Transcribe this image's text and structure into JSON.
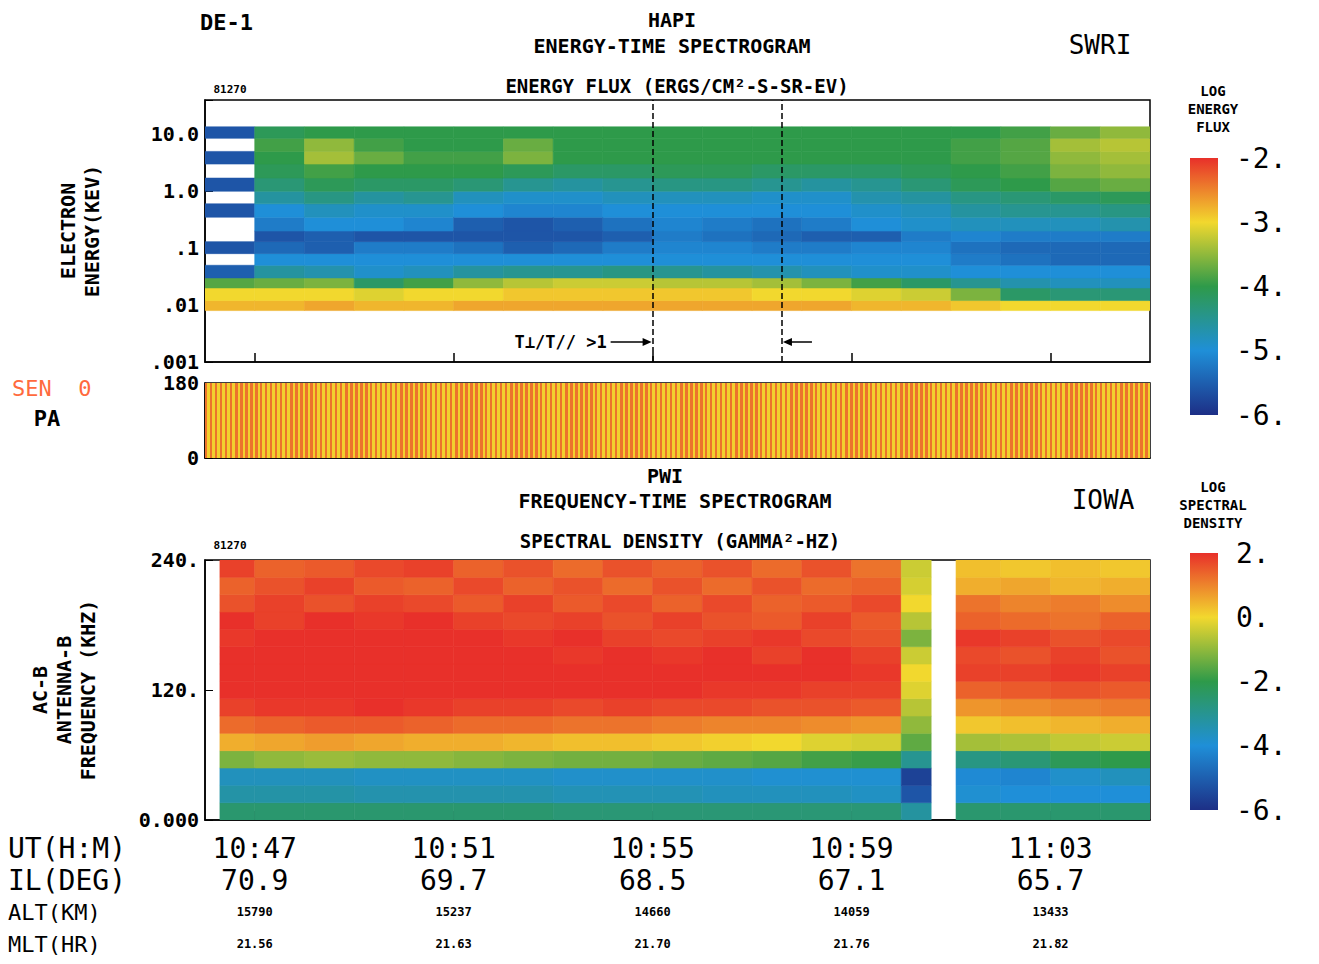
{
  "header": {
    "satellite": "DE-1"
  },
  "chart_data": [
    {
      "type": "heatmap",
      "instrument": "HAPI",
      "title": "ENERGY-TIME SPECTROGRAM",
      "institution": "SWRI",
      "subtitle": "ENERGY FLUX (ERGS/CM²-S-SR-EV)",
      "date": "81270",
      "y_label": [
        "ELECTRON",
        "ENERGY(KEV)"
      ],
      "log": "y",
      "tick_labels": "y",
      "xlim": [
        646,
        665
      ],
      "xticks": [
        {
          "value": 647,
          "label": "10:47"
        },
        {
          "value": 651,
          "label": "10:51"
        },
        {
          "value": 655,
          "label": "10:55"
        },
        {
          "value": 659,
          "label": "10:59"
        },
        {
          "value": 663,
          "label": "11:03"
        }
      ],
      "ylim": [
        0.001,
        40
      ],
      "yticks": [
        {
          "value": 10,
          "label": "10.0"
        },
        {
          "value": 1,
          "label": "1.0"
        },
        {
          "value": 0.1,
          "label": ".1"
        },
        {
          "value": 0.01,
          "label": ".01"
        },
        {
          "value": 0.001,
          "label": ".001"
        }
      ],
      "x_edges": [
        646,
        647,
        648,
        649,
        650,
        651,
        652,
        653,
        654,
        655,
        656,
        657,
        658,
        659,
        660,
        661,
        662,
        663,
        664,
        665
      ],
      "y_edges": [
        0.008,
        0.012,
        0.02,
        0.03,
        0.05,
        0.08,
        0.13,
        0.2,
        0.35,
        0.6,
        1.0,
        1.7,
        3,
        5,
        8.5,
        13.5
      ],
      "cells": [
        [
          -2.8,
          -3.0,
          -3.8,
          -5.5,
          null,
          -5.6,
          null,
          null,
          -5.6,
          null,
          -5.6,
          null,
          -5.6,
          null,
          -5.6
        ],
        [
          -2.8,
          -3.0,
          -3.7,
          -4.6,
          -5.0,
          -5.4,
          -5.6,
          -5.2,
          -5.0,
          -4.6,
          -4.3,
          -4.1,
          -4.0,
          -3.9,
          -4.1
        ],
        [
          -2.7,
          -3.0,
          -3.6,
          -4.7,
          -5.0,
          -5.5,
          -5.5,
          -5.0,
          -4.8,
          -4.4,
          -4.1,
          -3.9,
          -3.4,
          -3.5,
          -4.0
        ],
        [
          -2.8,
          -3.1,
          -4.2,
          -4.9,
          -5.0,
          -5.2,
          -5.6,
          -5.0,
          -4.9,
          -4.6,
          -4.2,
          -4.0,
          -3.7,
          -3.9,
          -4.0
        ],
        [
          -2.8,
          -3.0,
          -3.9,
          -4.8,
          -5.0,
          -5.2,
          -5.6,
          -5.1,
          -4.9,
          -4.5,
          -4.2,
          -4.0,
          -3.9,
          -4.0,
          -4.0
        ],
        [
          -2.7,
          -3.0,
          -3.5,
          -4.6,
          -5.0,
          -5.3,
          -5.6,
          -5.5,
          -5.0,
          -4.8,
          -4.3,
          -4.0,
          -3.9,
          -4.0,
          -4.0
        ],
        [
          -2.7,
          -2.9,
          -3.3,
          -4.5,
          -5.0,
          -5.5,
          -5.6,
          -5.6,
          -5.1,
          -4.9,
          -4.5,
          -4.1,
          -3.6,
          -3.7,
          -4.0
        ],
        [
          -2.7,
          -2.9,
          -3.2,
          -4.5,
          -5.0,
          -5.4,
          -5.6,
          -5.5,
          -5.1,
          -4.9,
          -4.6,
          -4.2,
          -4.0,
          -4.0,
          -4.0
        ],
        [
          -2.7,
          -2.9,
          -3.2,
          -4.4,
          -5.0,
          -5.2,
          -5.5,
          -5.3,
          -5.0,
          -4.8,
          -4.5,
          -4.2,
          -4.0,
          -4.0,
          -4.0
        ],
        [
          -2.7,
          -2.9,
          -3.3,
          -4.5,
          -5.0,
          -5.1,
          -5.2,
          -5.1,
          -5.0,
          -4.8,
          -4.4,
          -4.1,
          -4.0,
          -4.0,
          -4.0
        ],
        [
          -2.7,
          -2.9,
          -3.3,
          -4.6,
          -5.0,
          -5.1,
          -5.3,
          -5.2,
          -5.0,
          -4.8,
          -4.4,
          -4.1,
          -4.0,
          -4.0,
          -4.0
        ],
        [
          -2.7,
          -3.0,
          -3.4,
          -4.7,
          -5.0,
          -5.2,
          -5.4,
          -5.3,
          -5.0,
          -4.9,
          -4.5,
          -4.2,
          -4.0,
          -4.0,
          -4.0
        ],
        [
          -2.7,
          -3.0,
          -3.6,
          -4.8,
          -5.0,
          -5.2,
          -5.5,
          -5.2,
          -5.0,
          -4.9,
          -4.6,
          -4.2,
          -4.0,
          -4.0,
          -4.0
        ],
        [
          -2.8,
          -3.1,
          -3.9,
          -4.9,
          -5.0,
          -5.1,
          -5.5,
          -5.0,
          -4.9,
          -4.7,
          -4.5,
          -4.2,
          -4.0,
          -4.0,
          -4.0
        ],
        [
          -2.8,
          -3.2,
          -4.2,
          -4.9,
          -5.0,
          -5.1,
          -5.2,
          -4.9,
          -4.8,
          -4.6,
          -4.3,
          -4.1,
          -4.0,
          -4.0,
          -4.0
        ],
        [
          -2.9,
          -3.6,
          -4.5,
          -5.0,
          -5.2,
          -5.3,
          -5.1,
          -4.8,
          -4.6,
          -4.4,
          -4.1,
          -4.0,
          -3.9,
          -3.9,
          -4.0
        ],
        [
          -3.0,
          -4.2,
          -4.7,
          -5.0,
          -5.3,
          -5.4,
          -5.2,
          -4.8,
          -4.5,
          -4.3,
          -4.0,
          -3.9,
          -3.8,
          -3.8,
          -3.9
        ],
        [
          -3.0,
          -4.3,
          -4.8,
          -5.0,
          -5.4,
          -5.4,
          -5.2,
          -4.8,
          -4.5,
          -4.2,
          -3.8,
          -3.6,
          -3.5,
          -3.4,
          -3.7
        ],
        [
          -3.0,
          -4.3,
          -4.8,
          -5.0,
          -5.4,
          -5.4,
          -5.2,
          -4.7,
          -4.4,
          -4.1,
          -3.7,
          -3.5,
          -3.4,
          -3.3,
          -3.5
        ]
      ],
      "annotation": {
        "text": "T⊥/T// >1",
        "x": [
          655,
          657.6
        ]
      },
      "colorbar": {
        "title": [
          "LOG",
          "ENERGY",
          "FLUX"
        ],
        "range": [
          -6,
          -2
        ],
        "ticks": [
          {
            "value": -2,
            "label": "-2."
          },
          {
            "value": -3,
            "label": "-3."
          },
          {
            "value": -4,
            "label": "-4."
          },
          {
            "value": -5,
            "label": "-5."
          },
          {
            "value": -6,
            "label": "-6."
          }
        ],
        "colorscale": [
          [
            -6,
            "#1d2f86"
          ],
          [
            -5,
            "#1f8fd8"
          ],
          [
            -4,
            "#2e9a4a"
          ],
          [
            -3,
            "#f2d82e"
          ],
          [
            -2,
            "#e8302a"
          ]
        ]
      }
    },
    {
      "type": "heatmap",
      "sensor_label": "SEN  0",
      "y_label": "PA",
      "tick_labels": "y",
      "xlim": [
        646,
        665
      ],
      "xticks": [
        {
          "value": 647,
          "label": "10:47"
        },
        {
          "value": 651,
          "label": "10:51"
        },
        {
          "value": 655,
          "label": "10:55"
        },
        {
          "value": 659,
          "label": "10:59"
        },
        {
          "value": 663,
          "label": "11:03"
        }
      ],
      "ylim": [
        0,
        180
      ],
      "yticks": [
        0,
        180
      ],
      "x_edges": [
        646,
        665
      ],
      "y_edges": [
        0,
        180
      ],
      "cells": [
        [
          -2.4
        ]
      ]
    },
    {
      "type": "heatmap",
      "instrument": "PWI",
      "title": "FREQUENCY-TIME SPECTROGRAM",
      "institution": "IOWA",
      "subtitle": "SPECTRAL DENSITY (GAMMA²-HZ)",
      "date": "81270",
      "y_label": [
        "AC-B",
        "ANTENNA-B",
        "FREQUENCY (KHZ)"
      ],
      "x_label": "UT(H:M)",
      "xlim": [
        646,
        665
      ],
      "xticks": [
        {
          "value": 647,
          "label": "10:47"
        },
        {
          "value": 651,
          "label": "10:51"
        },
        {
          "value": 655,
          "label": "10:55"
        },
        {
          "value": 659,
          "label": "10:59"
        },
        {
          "value": 663,
          "label": "11:03"
        }
      ],
      "x_rows": [
        {
          "label": "IL(DEG)",
          "ticks": [
            "70.9",
            "69.7",
            "68.5",
            "67.1",
            "65.7"
          ]
        },
        {
          "label": "ALT(KM)",
          "ticks": [
            "15790",
            "15237",
            "14660",
            "14059",
            "13433"
          ]
        },
        {
          "label": "MLT(HR)",
          "ticks": [
            "21.56",
            "21.63",
            "21.70",
            "21.76",
            "21.82"
          ]
        }
      ],
      "ylim": [
        0,
        240
      ],
      "yticks": [
        {
          "value": 0,
          "label": "0.000"
        },
        {
          "value": 120,
          "label": "120."
        },
        {
          "value": 240,
          "label": "240."
        }
      ],
      "x_edges": [
        646.3,
        647,
        648,
        649,
        650,
        651,
        652,
        653,
        654,
        655,
        656,
        657,
        658,
        659,
        660,
        660.6,
        661.1,
        662,
        663,
        664,
        665
      ],
      "y_edges": [
        0,
        16,
        32,
        48,
        64,
        80,
        96,
        112,
        128,
        144,
        160,
        176,
        192,
        208,
        224,
        240
      ],
      "cells": [
        [
          -2.5,
          -3.3,
          -3.6,
          -1.2,
          0.5,
          1.3,
          1.8,
          2,
          2,
          2,
          1.9,
          2,
          1.6,
          1.4,
          1.8
        ],
        [
          -2.5,
          -3.3,
          -3.6,
          -1.0,
          0.6,
          1.4,
          1.9,
          2,
          2,
          2,
          2,
          1.8,
          1.8,
          1.6,
          1.4
        ],
        [
          -2.5,
          -3.3,
          -3.6,
          -0.9,
          0.7,
          1.5,
          1.9,
          2,
          2,
          2,
          2,
          2,
          1.6,
          1.8,
          1.5
        ],
        [
          -2.5,
          -3.4,
          -3.7,
          -1.0,
          0.6,
          1.5,
          2,
          2,
          2,
          2,
          2,
          1.9,
          1.8,
          1.5,
          1.7
        ],
        [
          -2.5,
          -3.4,
          -3.7,
          -1.0,
          0.5,
          1.4,
          1.9,
          2,
          2,
          2,
          2,
          2,
          1.7,
          1.4,
          1.8
        ],
        [
          -2.5,
          -3.4,
          -3.7,
          -1.1,
          0.5,
          1.3,
          1.8,
          2,
          2,
          2,
          2,
          1.8,
          1.5,
          1.7,
          1.4
        ],
        [
          -2.5,
          -3.4,
          -3.7,
          -1.2,
          0.4,
          1.3,
          1.8,
          2,
          2,
          2,
          1.9,
          1.7,
          1.8,
          1.4,
          1.6
        ],
        [
          -2.6,
          -3.5,
          -3.8,
          -1.3,
          0.3,
          1.2,
          1.7,
          2,
          2,
          1.9,
          2,
          1.8,
          1.5,
          1.6,
          1.3
        ],
        [
          -2.6,
          -3.5,
          -3.8,
          -1.3,
          0.3,
          1.2,
          1.8,
          2,
          2,
          2,
          1.8,
          1.6,
          1.7,
          1.3,
          1.6
        ],
        [
          -2.6,
          -3.5,
          -3.8,
          -1.4,
          0.2,
          1.1,
          1.7,
          2,
          2,
          1.9,
          1.7,
          1.8,
          1.4,
          1.6,
          1.4
        ],
        [
          -2.6,
          -3.6,
          -3.8,
          -1.5,
          0.1,
          1.0,
          1.7,
          1.9,
          2,
          2,
          1.8,
          1.6,
          1.7,
          1.3,
          1.6
        ],
        [
          -2.6,
          -3.6,
          -3.9,
          -1.6,
          0.0,
          1.0,
          1.6,
          1.9,
          2,
          1.8,
          1.9,
          1.5,
          1.4,
          1.6,
          1.3
        ],
        [
          -2.6,
          -3.6,
          -3.9,
          -1.8,
          -0.2,
          0.9,
          1.6,
          1.8,
          2,
          2,
          1.7,
          1.8,
          1.5,
          1.3,
          1.6
        ],
        [
          -2.6,
          -3.7,
          -3.9,
          -1.9,
          -0.3,
          0.8,
          1.5,
          1.8,
          1.9,
          1.8,
          1.6,
          1.5,
          1.7,
          1.4,
          1.2
        ],
        [
          -3.2,
          -5.2,
          -5.6,
          -3.0,
          -1.5,
          -1.0,
          -0.6,
          -0.2,
          0,
          -0.4,
          -1.2,
          -0.6,
          0,
          -0.3,
          -0.4
        ],
        [
          null,
          null,
          null,
          null,
          null,
          null,
          null,
          null,
          null,
          null,
          null,
          null,
          null,
          null,
          null
        ],
        [
          -2.5,
          -3.9,
          -4.1,
          -2.8,
          -0.8,
          0.2,
          0.8,
          1.4,
          1.8,
          1.7,
          1.9,
          1.4,
          1.2,
          0.5,
          0.3
        ],
        [
          -2.5,
          -4.0,
          -4.2,
          -2.6,
          -0.7,
          0.3,
          0.9,
          1.5,
          1.8,
          1.6,
          1.8,
          1.3,
          1.0,
          0.6,
          0.2
        ],
        [
          -2.5,
          -4.0,
          -3.8,
          -2.2,
          -0.5,
          0.4,
          1.0,
          1.6,
          1.9,
          1.8,
          1.6,
          1.2,
          1.1,
          0.4,
          0.3
        ],
        [
          -2.5,
          -4.0,
          -3.6,
          -2.0,
          -0.4,
          0.5,
          1.1,
          1.5,
          1.8,
          1.6,
          1.7,
          1.4,
          0.9,
          0.5,
          0.2
        ]
      ],
      "colorbar": {
        "title": [
          "LOG",
          "SPECTRAL",
          "DENSITY"
        ],
        "range": [
          -6,
          2
        ],
        "ticks": [
          {
            "value": 2,
            "label": "2."
          },
          {
            "value": 0,
            "label": "0."
          },
          {
            "value": -2,
            "label": "-2."
          },
          {
            "value": -4,
            "label": "-4."
          },
          {
            "value": -6,
            "label": "-6."
          }
        ],
        "colorscale": [
          [
            -6,
            "#1d2f86"
          ],
          [
            -4,
            "#1f8fd8"
          ],
          [
            -2,
            "#2e9a4a"
          ],
          [
            0,
            "#f2d82e"
          ],
          [
            2,
            "#e8302a"
          ]
        ]
      }
    }
  ]
}
